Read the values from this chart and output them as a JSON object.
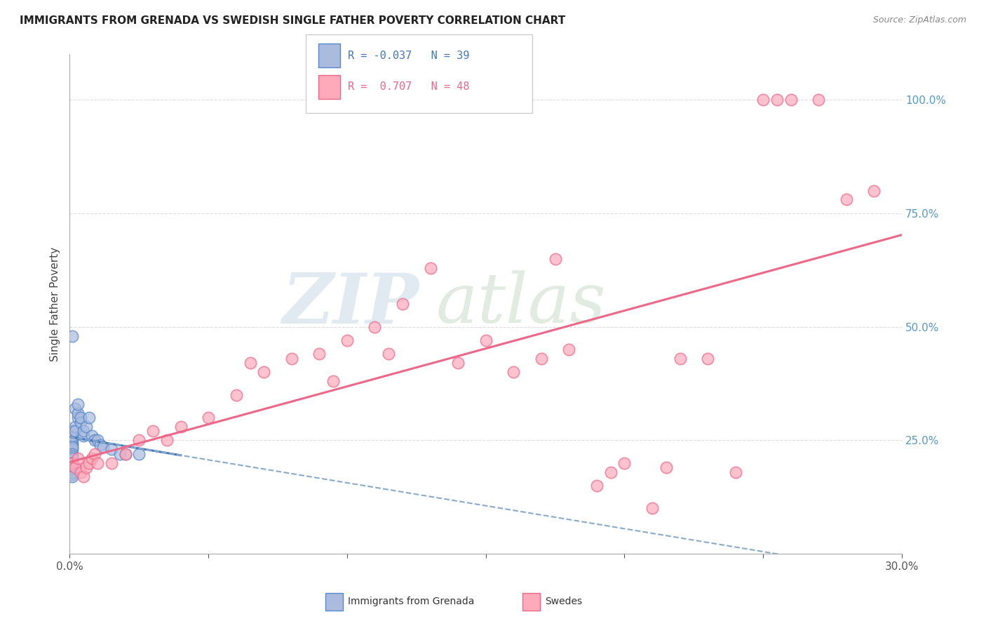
{
  "title": "IMMIGRANTS FROM GRENADA VS SWEDISH SINGLE FATHER POVERTY CORRELATION CHART",
  "source": "Source: ZipAtlas.com",
  "ylabel": "Single Father Poverty",
  "x_min": 0.0,
  "x_max": 0.3,
  "y_min": 0.0,
  "y_max": 1.1,
  "color_blue_fill": "#AABBDD",
  "color_blue_edge": "#5588CC",
  "color_blue_line": "#4477BB",
  "color_blue_dash": "#88AACC",
  "color_pink_fill": "#FFAABB",
  "color_pink_edge": "#EE6688",
  "color_pink_line": "#EE6688",
  "watermark_zip_color": "#BBCCDD",
  "watermark_atlas_color": "#BBCCBB",
  "grid_color": "#DDDDDD",
  "right_tick_color": "#5599CC",
  "blue_x": [
    0.001,
    0.001,
    0.001,
    0.001,
    0.001,
    0.001,
    0.001,
    0.001,
    0.001,
    0.001,
    0.001,
    0.001,
    0.002,
    0.002,
    0.002,
    0.003,
    0.003,
    0.003,
    0.004,
    0.004,
    0.005,
    0.005,
    0.006,
    0.007,
    0.008,
    0.009,
    0.01,
    0.011,
    0.012,
    0.015,
    0.018,
    0.02,
    0.025,
    0.001,
    0.001,
    0.002,
    0.001,
    0.001,
    0.001
  ],
  "blue_y": [
    0.24,
    0.245,
    0.25,
    0.255,
    0.26,
    0.27,
    0.23,
    0.235,
    0.22,
    0.215,
    0.21,
    0.2,
    0.28,
    0.27,
    0.32,
    0.3,
    0.31,
    0.33,
    0.29,
    0.3,
    0.26,
    0.27,
    0.28,
    0.3,
    0.26,
    0.25,
    0.25,
    0.24,
    0.235,
    0.23,
    0.22,
    0.22,
    0.22,
    0.175,
    0.185,
    0.19,
    0.48,
    0.18,
    0.17
  ],
  "pink_x": [
    0.001,
    0.002,
    0.003,
    0.004,
    0.005,
    0.006,
    0.007,
    0.008,
    0.009,
    0.01,
    0.015,
    0.02,
    0.025,
    0.03,
    0.035,
    0.04,
    0.05,
    0.06,
    0.065,
    0.07,
    0.08,
    0.09,
    0.095,
    0.1,
    0.11,
    0.115,
    0.12,
    0.13,
    0.14,
    0.15,
    0.16,
    0.17,
    0.175,
    0.18,
    0.19,
    0.195,
    0.2,
    0.21,
    0.215,
    0.22,
    0.23,
    0.24,
    0.25,
    0.255,
    0.26,
    0.27,
    0.28,
    0.29
  ],
  "pink_y": [
    0.2,
    0.19,
    0.21,
    0.18,
    0.17,
    0.19,
    0.2,
    0.21,
    0.22,
    0.2,
    0.2,
    0.22,
    0.25,
    0.27,
    0.25,
    0.28,
    0.3,
    0.35,
    0.42,
    0.4,
    0.43,
    0.44,
    0.38,
    0.47,
    0.5,
    0.44,
    0.55,
    0.63,
    0.42,
    0.47,
    0.4,
    0.43,
    0.65,
    0.45,
    0.15,
    0.18,
    0.2,
    0.1,
    0.19,
    0.43,
    0.43,
    0.18,
    1.0,
    1.0,
    1.0,
    1.0,
    0.78,
    0.8
  ],
  "legend_items": [
    {
      "label": "R = -0.037   N = 39",
      "color": "#4477BB"
    },
    {
      "label": "R =  0.707   N = 48",
      "color": "#EE6688"
    }
  ]
}
